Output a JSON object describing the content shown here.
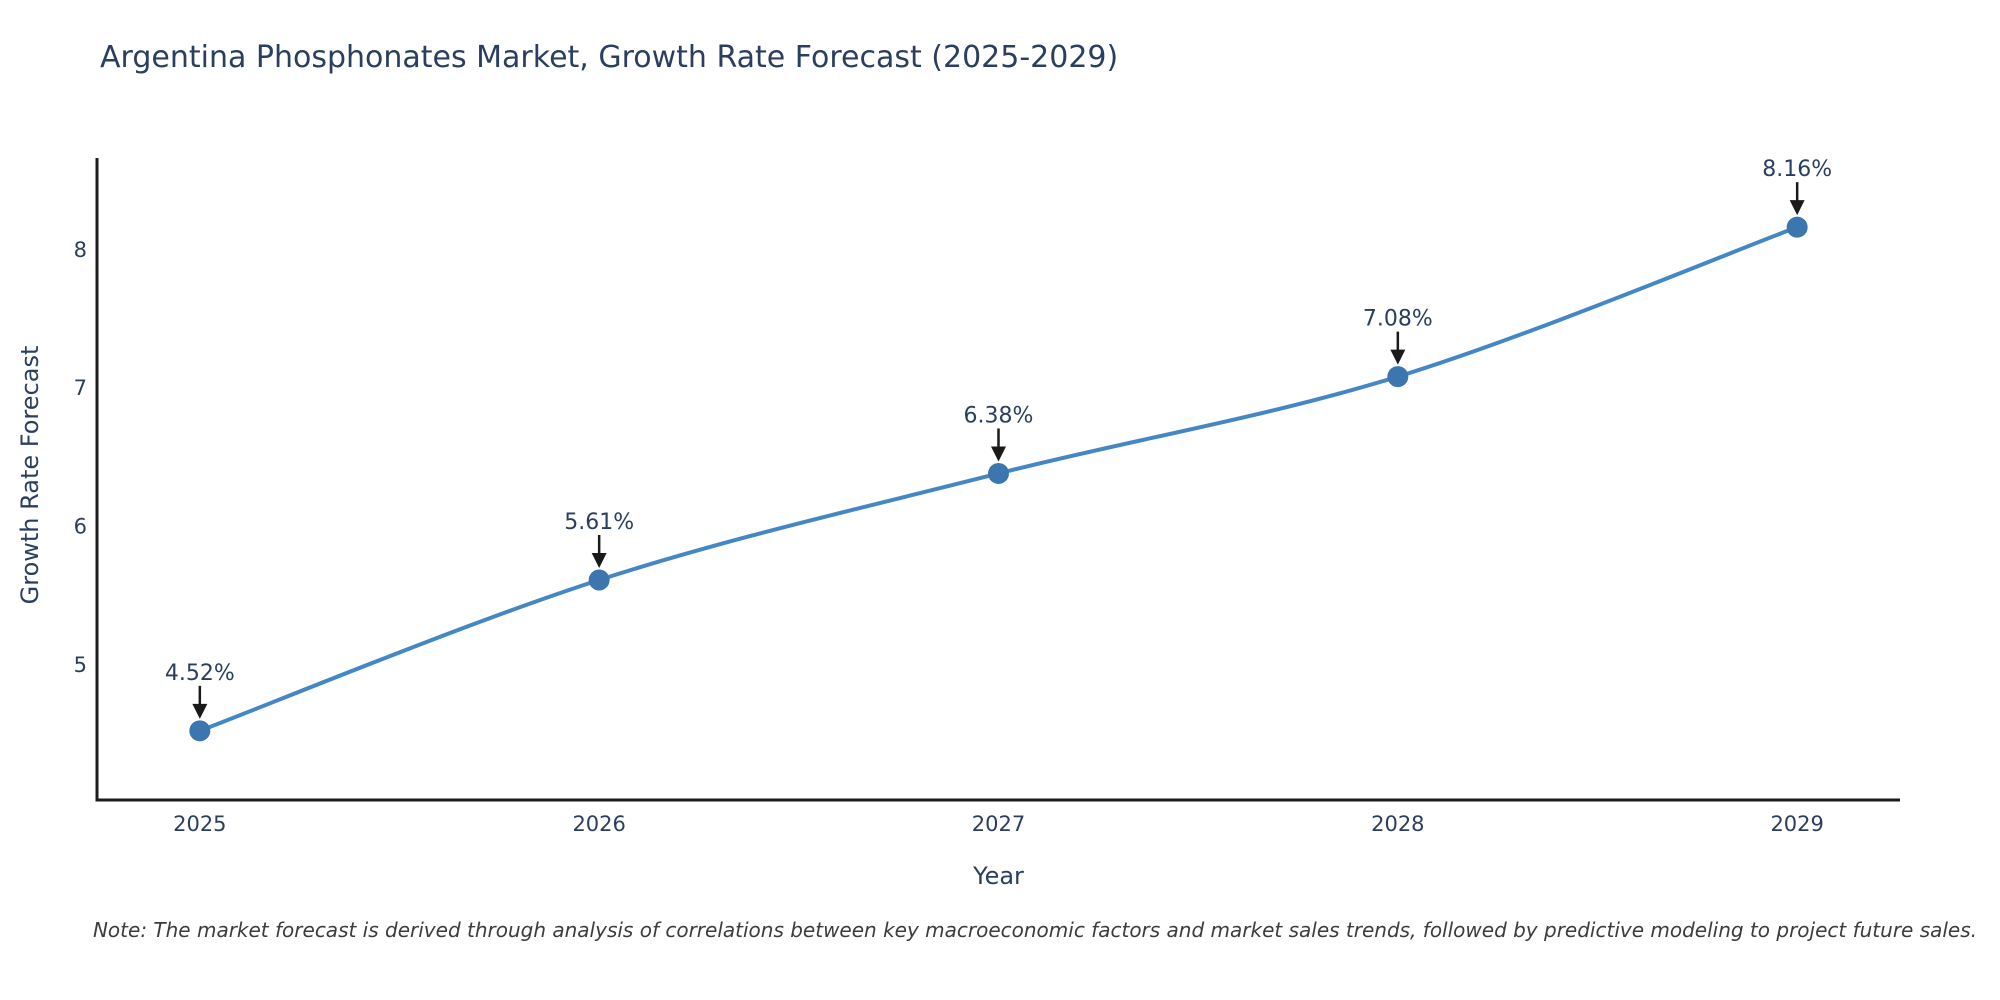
{
  "title": "Argentina Phosphonates Market, Growth Rate Forecast (2025-2029)",
  "note": "Note: The market forecast is derived through analysis of correlations between key macroeconomic factors and market sales trends, followed by predictive modeling to project future sales.",
  "chart_data": {
    "type": "line",
    "title": "Argentina Phosphonates Market, Growth Rate Forecast (2025-2029)",
    "xlabel": "Year",
    "ylabel": "Growth Rate Forecast",
    "x": [
      2025,
      2026,
      2027,
      2028,
      2029
    ],
    "series": [
      {
        "name": "Growth Rate Forecast",
        "values": [
          4.52,
          5.61,
          6.38,
          7.08,
          8.16
        ]
      }
    ],
    "point_labels": [
      "4.52%",
      "5.61%",
      "6.38%",
      "7.08%",
      "8.16%"
    ],
    "xticks": [
      2025,
      2026,
      2027,
      2028,
      2029
    ],
    "yticks": [
      5,
      6,
      7,
      8
    ],
    "xlim": [
      2024.7425,
      2029.2575
    ],
    "ylim": [
      4.02,
      8.66
    ],
    "grid": false,
    "legend": "none",
    "line_shape": "spline",
    "marker_size": 21,
    "line_width": 4,
    "colors": {
      "line": "#4587c4",
      "marker": "#3b76af",
      "arrow": "#1a1a1a",
      "axis": "#1c1c1c",
      "text": "#2a3f5f",
      "note": "#3c3c3c"
    }
  }
}
